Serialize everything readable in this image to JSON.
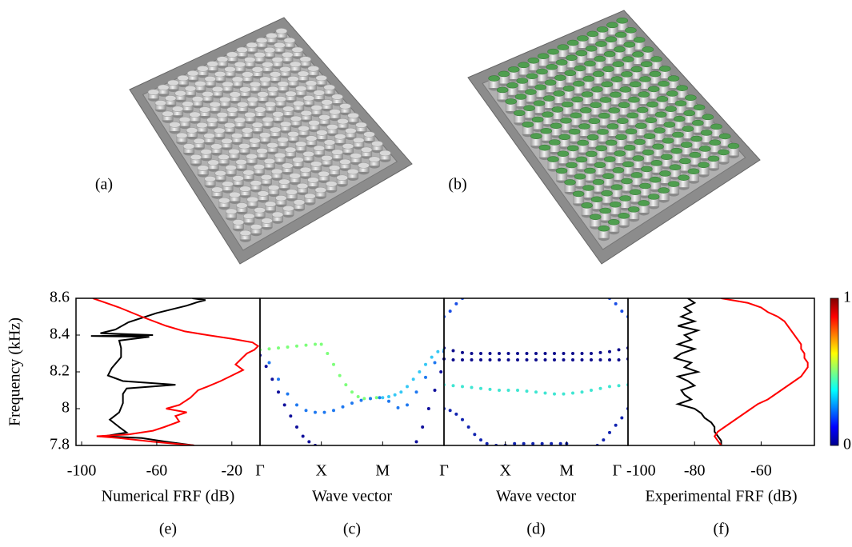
{
  "panels": {
    "a": "(a)",
    "b": "(b)"
  },
  "chart_data": [
    {
      "type": "line",
      "panel": "(e)",
      "xlabel": "Numerical FRF (dB)",
      "ylabel": "Frequency (kHz)",
      "xlim": [
        -103,
        -5
      ],
      "xticks": [
        -100,
        -60,
        -20
      ],
      "ylim": [
        7.8,
        8.6
      ],
      "yticks": [
        7.8,
        8,
        8.2,
        8.4,
        8.6
      ],
      "series": [
        {
          "color": "#000000",
          "y": [
            8.6,
            8.59,
            8.58,
            8.56,
            8.52,
            8.47,
            8.43,
            8.41,
            8.4,
            8.395,
            8.39,
            8.37,
            8.33,
            8.28,
            8.22,
            8.18,
            8.15,
            8.13,
            8.11,
            8.08,
            8.03,
            7.98,
            7.94,
            7.9,
            7.87,
            7.85,
            7.84,
            7.82,
            7.8
          ],
          "values": [
            -41,
            -34,
            -38,
            -44,
            -60,
            -75,
            -82,
            -90,
            -62,
            -95,
            -64,
            -80,
            -79,
            -79,
            -84,
            -86,
            -78,
            -50,
            -76,
            -78,
            -78,
            -80,
            -85,
            -80,
            -76,
            -88,
            -68,
            -55,
            -40
          ]
        },
        {
          "color": "#ff0000",
          "y": [
            8.6,
            8.55,
            8.5,
            8.45,
            8.42,
            8.4,
            8.38,
            8.36,
            8.34,
            8.32,
            8.3,
            8.27,
            8.24,
            8.21,
            8.18,
            8.15,
            8.12,
            8.1,
            8.06,
            8.02,
            8.0,
            7.98,
            7.96,
            7.93,
            7.9,
            7.88,
            7.86,
            7.85,
            7.84,
            7.82,
            7.8
          ],
          "values": [
            -94,
            -80,
            -68,
            -55,
            -45,
            -33,
            -20,
            -9,
            -6,
            -8,
            -12,
            -15,
            -18,
            -14,
            -20,
            -26,
            -33,
            -38,
            -42,
            -48,
            -55,
            -44,
            -50,
            -48,
            -56,
            -62,
            -75,
            -92,
            -80,
            -62,
            -40
          ]
        }
      ]
    },
    {
      "type": "scatter",
      "panel": "(c)",
      "xlabel": "Wave vector",
      "xlim": [
        0,
        3
      ],
      "xticks": [
        {
          "value": 0,
          "label": "Γ"
        },
        {
          "value": 1,
          "label": "X"
        },
        {
          "value": 2,
          "label": "M"
        },
        {
          "value": 3,
          "label": "Γ"
        }
      ],
      "ylim": [
        7.8,
        8.6
      ],
      "series": [
        {
          "color": "#7dff7a",
          "x": [
            0,
            0.15,
            0.3,
            0.45,
            0.6,
            0.75,
            0.9,
            1.0,
            1.1,
            1.2,
            1.3,
            1.4,
            1.5,
            1.6,
            1.7,
            1.8,
            1.9
          ],
          "values": [
            8.32,
            8.325,
            8.33,
            8.335,
            8.34,
            8.345,
            8.35,
            8.35,
            8.3,
            8.24,
            8.18,
            8.13,
            8.09,
            8.065,
            8.055,
            8.055,
            8.06
          ]
        },
        {
          "color": "#35c8f5",
          "x": [
            2.0,
            2.1,
            2.2,
            2.3,
            2.4,
            2.5,
            2.6,
            2.7,
            2.8,
            2.9,
            3.0
          ],
          "values": [
            8.06,
            8.065,
            8.075,
            8.09,
            8.12,
            8.16,
            8.2,
            8.24,
            8.28,
            8.31,
            8.32
          ]
        },
        {
          "color": "#1e78f0",
          "x": [
            0.15,
            0.3,
            0.45,
            0.6,
            0.75,
            0.9,
            1.05,
            1.2,
            1.35,
            1.5,
            1.65,
            1.8,
            1.95,
            2.1,
            2.25,
            2.4,
            2.55,
            2.7,
            2.85,
            3.0
          ],
          "values": [
            8.25,
            8.16,
            8.08,
            8.02,
            7.99,
            7.98,
            7.98,
            7.99,
            8.01,
            8.03,
            8.045,
            8.055,
            8.06,
            8.04,
            8.005,
            8.02,
            8.09,
            8.17,
            8.25,
            8.31
          ]
        },
        {
          "color": "#10109c",
          "x": [
            0,
            0.1,
            0.2,
            0.3,
            0.4,
            0.5,
            0.6,
            0.7,
            0.8,
            0.9
          ],
          "values": [
            8.29,
            8.23,
            8.16,
            8.09,
            8.02,
            7.96,
            7.9,
            7.85,
            7.82,
            7.8
          ]
        },
        {
          "color": "#10109c",
          "x": [
            2.55,
            2.65,
            2.75,
            2.85,
            2.95,
            3.0
          ],
          "values": [
            7.82,
            7.9,
            8.0,
            8.1,
            8.2,
            8.27
          ]
        }
      ]
    },
    {
      "type": "scatter",
      "panel": "(d)",
      "xlabel": "Wave vector",
      "xlim": [
        0,
        3
      ],
      "xticks": [
        {
          "value": 0,
          "label": "Γ"
        },
        {
          "value": 1,
          "label": "X"
        },
        {
          "value": 2,
          "label": "M"
        },
        {
          "value": 3,
          "label": "Γ"
        }
      ],
      "ylim": [
        7.8,
        8.6
      ],
      "colorbar": {
        "colormap": "jet",
        "ticks": [
          0,
          1
        ]
      },
      "series": [
        {
          "color": "#1a4ee6",
          "x": [
            0,
            0.1,
            0.2,
            0.3,
            2.7,
            2.8,
            2.9,
            3.0
          ],
          "values": [
            8.5,
            8.53,
            8.57,
            8.6,
            8.6,
            8.57,
            8.53,
            8.5
          ]
        },
        {
          "color": "#0c0c8c",
          "x": [
            0,
            0.15,
            0.3,
            0.45,
            0.6,
            0.75,
            0.9,
            1.05,
            1.2,
            1.35,
            1.5,
            1.65,
            1.8,
            1.95,
            2.1,
            2.25,
            2.4,
            2.55,
            2.7,
            2.85,
            3
          ],
          "values": [
            8.33,
            8.315,
            8.305,
            8.3,
            8.3,
            8.3,
            8.3,
            8.3,
            8.3,
            8.3,
            8.3,
            8.3,
            8.3,
            8.3,
            8.3,
            8.3,
            8.3,
            8.305,
            8.31,
            8.32,
            8.33
          ]
        },
        {
          "color": "#0c0c8c",
          "x": [
            0,
            0.15,
            0.3,
            0.45,
            0.6,
            0.75,
            0.9,
            1.05,
            1.2,
            1.35,
            1.5,
            1.65,
            1.8,
            1.95,
            2.1,
            2.25,
            2.4,
            2.55,
            2.7,
            2.85,
            3
          ],
          "values": [
            8.27,
            8.265,
            8.265,
            8.265,
            8.265,
            8.265,
            8.265,
            8.265,
            8.265,
            8.265,
            8.265,
            8.265,
            8.265,
            8.265,
            8.265,
            8.265,
            8.265,
            8.265,
            8.265,
            8.265,
            8.27
          ]
        },
        {
          "color": "#3fe6d2",
          "x": [
            0,
            0.15,
            0.3,
            0.45,
            0.6,
            0.75,
            0.9,
            1.05,
            1.2,
            1.35,
            1.5,
            1.65,
            1.8,
            1.95,
            2.1,
            2.25,
            2.4,
            2.55,
            2.7,
            2.85,
            3
          ],
          "values": [
            8.13,
            8.125,
            8.12,
            8.115,
            8.11,
            8.105,
            8.1,
            8.1,
            8.1,
            8.095,
            8.09,
            8.085,
            8.08,
            8.08,
            8.085,
            8.09,
            8.1,
            8.11,
            8.12,
            8.125,
            8.13
          ]
        },
        {
          "color": "#1224b0",
          "x": [
            0,
            0.1,
            0.2,
            0.3,
            0.4,
            0.5,
            0.6,
            0.7,
            0.85,
            1.0,
            1.15,
            1.3,
            1.45,
            1.6,
            1.75,
            1.9,
            2.0,
            2.5,
            2.6,
            2.7,
            2.8,
            2.9,
            3.0
          ],
          "values": [
            8.0,
            7.99,
            7.97,
            7.94,
            7.9,
            7.86,
            7.83,
            7.81,
            7.8,
            7.8,
            7.81,
            7.81,
            7.81,
            7.81,
            7.81,
            7.81,
            7.81,
            7.8,
            7.83,
            7.87,
            7.91,
            7.95,
            8.0
          ]
        }
      ]
    },
    {
      "type": "line",
      "panel": "(f)",
      "xlabel": "Experimental FRF (dB)",
      "xlim": [
        -100,
        -44
      ],
      "xticks": [
        -100,
        -80,
        -60
      ],
      "ylim": [
        7.8,
        8.6
      ],
      "series": [
        {
          "color": "#000000",
          "y": [
            8.6,
            8.575,
            8.55,
            8.525,
            8.5,
            8.475,
            8.45,
            8.425,
            8.4,
            8.375,
            8.35,
            8.325,
            8.3,
            8.275,
            8.25,
            8.225,
            8.2,
            8.175,
            8.15,
            8.125,
            8.1,
            8.075,
            8.05,
            8.025,
            8,
            7.975,
            7.95,
            7.925,
            7.9,
            7.875,
            7.85,
            7.825,
            7.8
          ],
          "values": [
            -82,
            -80,
            -83,
            -81,
            -84,
            -80,
            -85,
            -79,
            -83,
            -81,
            -85,
            -80,
            -84,
            -86,
            -81,
            -83,
            -79,
            -85,
            -82,
            -80,
            -84,
            -83,
            -81,
            -85,
            -80,
            -78,
            -77,
            -75,
            -74,
            -74,
            -73,
            -72,
            -72
          ]
        },
        {
          "color": "#ff0000",
          "y": [
            8.6,
            8.575,
            8.55,
            8.525,
            8.5,
            8.475,
            8.45,
            8.425,
            8.4,
            8.375,
            8.35,
            8.325,
            8.3,
            8.275,
            8.25,
            8.225,
            8.2,
            8.175,
            8.15,
            8.125,
            8.1,
            8.075,
            8.05,
            8.025,
            8,
            7.975,
            7.95,
            7.925,
            7.9,
            7.875,
            7.85,
            7.825,
            7.8
          ],
          "values": [
            -72,
            -64,
            -60,
            -58,
            -55,
            -53,
            -52,
            -51,
            -50,
            -49,
            -48,
            -48,
            -47,
            -47,
            -46,
            -46,
            -47,
            -48,
            -50,
            -52,
            -54,
            -56,
            -58,
            -61,
            -63,
            -65,
            -67,
            -69,
            -71,
            -73,
            -74,
            -73,
            -72
          ]
        }
      ]
    }
  ]
}
